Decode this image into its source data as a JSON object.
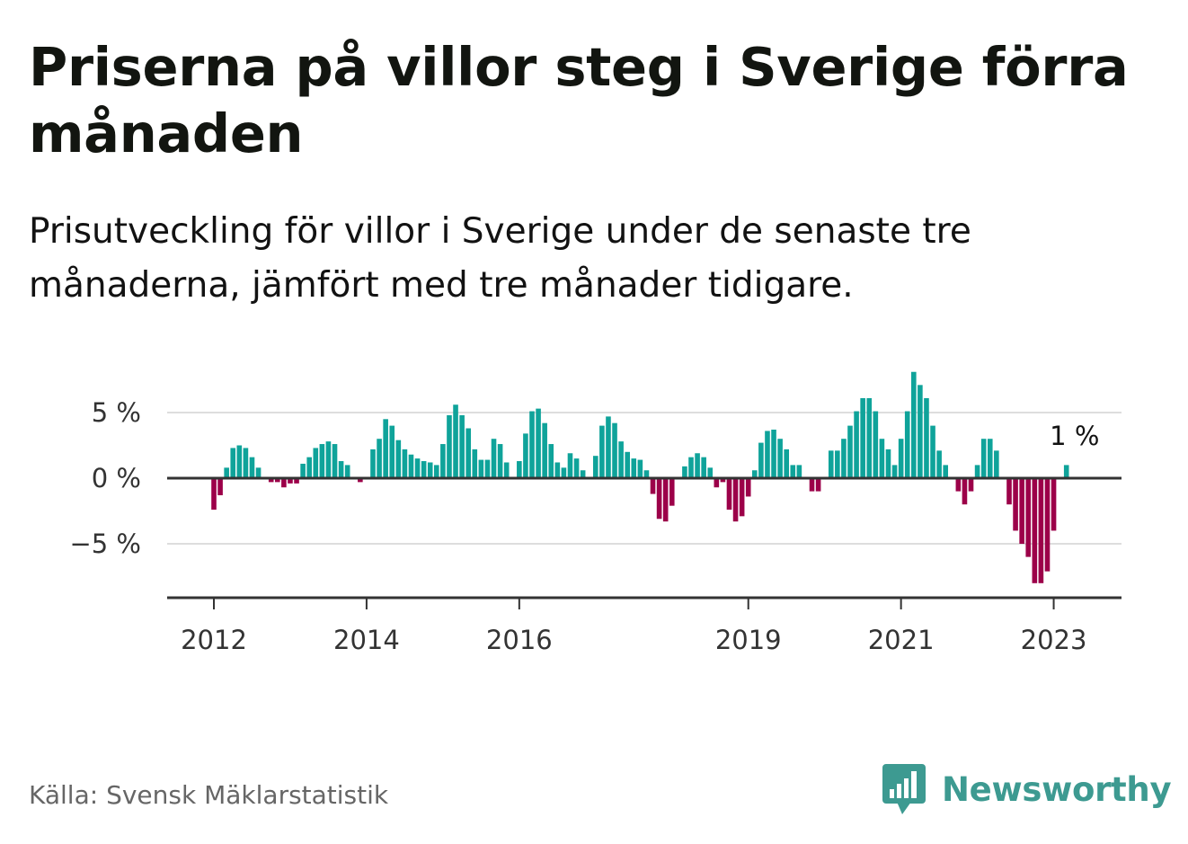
{
  "title": "Priserna på villor steg i Sverige förra månaden",
  "subtitle": "Prisutveckling för villor i Sverige under de senaste tre månaderna, jämfört med tre månader tidigare.",
  "source": "Källa: Svensk Mäklarstatistik",
  "brand": {
    "name": "Newsworthy",
    "logo_icon": "bar-chart-bubble-icon",
    "color": "#3d9a91"
  },
  "colors": {
    "positive": "#0fa39a",
    "negative": "#9c0049",
    "zero_line": "#333333",
    "grid": "#dddddd"
  },
  "chart_data": {
    "type": "bar",
    "title": "",
    "xlabel": "",
    "ylabel": "",
    "unit": "%",
    "ylim": [
      -9,
      9
    ],
    "grid": true,
    "y_ticks": [
      {
        "value": 5,
        "label": "5 %"
      },
      {
        "value": 0,
        "label": "0 %"
      },
      {
        "value": -5,
        "label": "−5 %"
      }
    ],
    "x_ticks": [
      {
        "index": 0,
        "label": "2012"
      },
      {
        "index": 24,
        "label": "2014"
      },
      {
        "index": 48,
        "label": "2016"
      },
      {
        "index": 84,
        "label": "2019"
      },
      {
        "index": 108,
        "label": "2021"
      },
      {
        "index": 132,
        "label": "2023"
      }
    ],
    "start": "2012-01",
    "frequency": "monthly",
    "annotation": {
      "index": 135,
      "label": "1 %"
    },
    "values": [
      -2.4,
      -1.3,
      0.8,
      2.3,
      2.5,
      2.3,
      1.6,
      0.8,
      0,
      -0.3,
      -0.3,
      -0.7,
      -0.4,
      -0.4,
      1.1,
      1.6,
      2.3,
      2.6,
      2.8,
      2.6,
      1.3,
      1.0,
      0,
      -0.3,
      0,
      2.2,
      3.0,
      4.5,
      4.0,
      2.9,
      2.2,
      1.8,
      1.5,
      1.3,
      1.2,
      1.0,
      2.6,
      4.8,
      5.6,
      4.8,
      3.8,
      2.2,
      1.4,
      1.4,
      3.0,
      2.6,
      1.2,
      0,
      1.3,
      3.4,
      5.1,
      5.3,
      4.2,
      2.6,
      1.2,
      0.8,
      1.9,
      1.5,
      0.6,
      0,
      1.7,
      4.0,
      4.7,
      4.2,
      2.8,
      2.0,
      1.5,
      1.4,
      0.6,
      -1.2,
      -3.1,
      -3.3,
      -2.1,
      0,
      0.9,
      1.6,
      1.9,
      1.6,
      0.8,
      -0.7,
      -0.3,
      -2.4,
      -3.3,
      -2.9,
      -1.4,
      0.6,
      2.7,
      3.6,
      3.7,
      3.0,
      2.2,
      1.0,
      1.0,
      0,
      -1.0,
      -1.0,
      0,
      2.1,
      2.1,
      3.0,
      4.0,
      5.1,
      6.1,
      6.1,
      5.1,
      3.0,
      2.2,
      1.0,
      3.0,
      5.1,
      8.1,
      7.1,
      6.1,
      4.0,
      2.1,
      1.0,
      0,
      -1.0,
      -2.0,
      -1.0,
      1.0,
      3.0,
      3.0,
      2.1,
      0,
      -2.0,
      -4.0,
      -5.0,
      -6.0,
      -8.0,
      -8.0,
      -7.1,
      -4.0,
      0,
      1.0
    ]
  }
}
